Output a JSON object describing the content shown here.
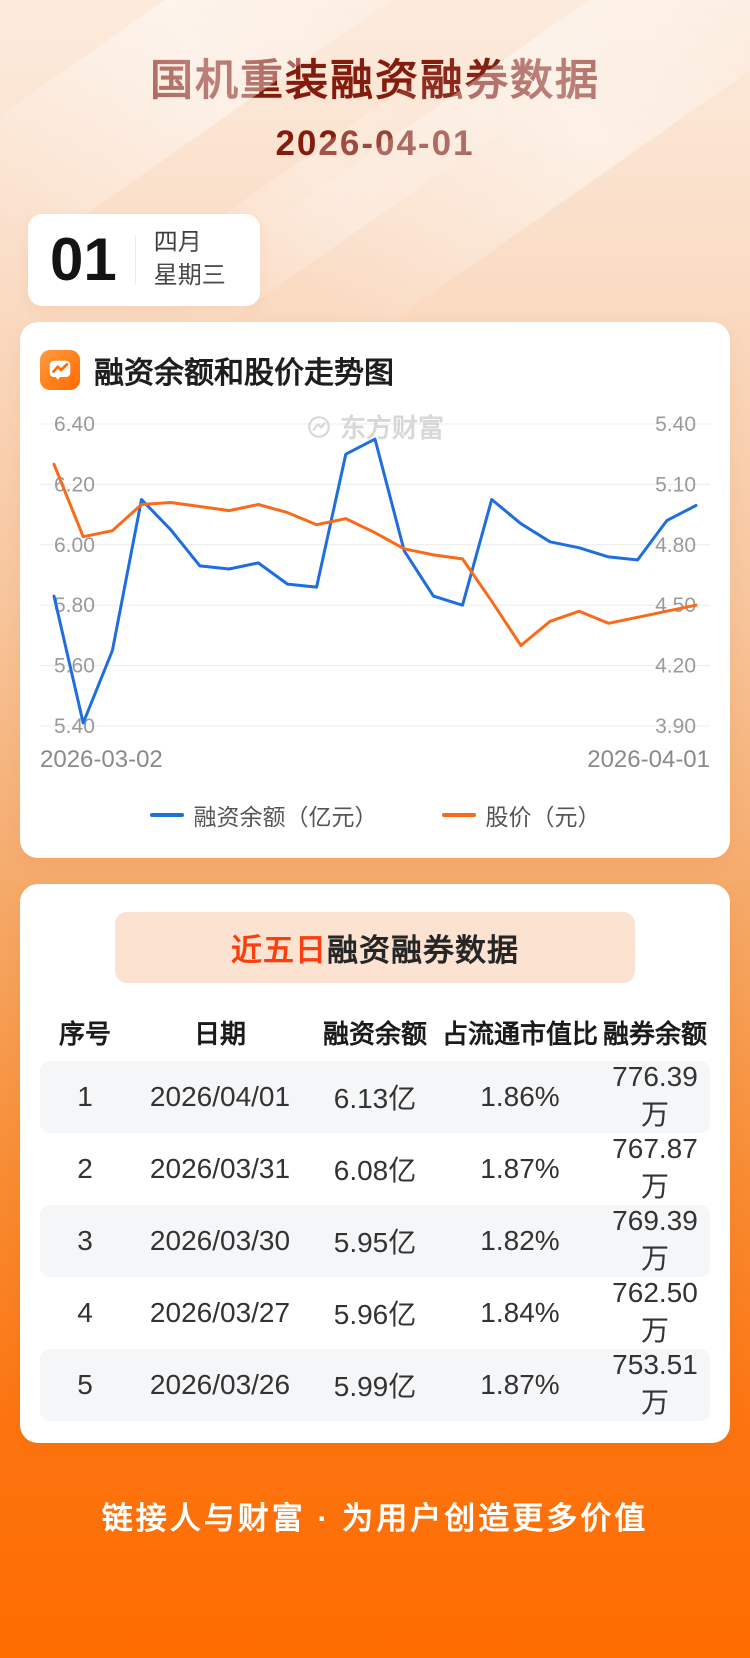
{
  "page": {
    "title": "国机重装融资融券数据",
    "date": "2026-04-01",
    "day_number": "01",
    "month_label": "四月",
    "weekday_label": "星期三",
    "watermark": "东方财富",
    "footer": "链接人与财富 · 为用户创造更多价值"
  },
  "colors": {
    "accent_orange": "#FF6C00",
    "title_red": "#841B0D",
    "line_blue": "#1E6EE0",
    "line_orange": "#F96A1B",
    "highlight_red": "#FA3E0E",
    "grid_gray": "#ECECEC",
    "row_alt": "#F5F6F8"
  },
  "chart_section": {
    "title": "融资余额和股价走势图",
    "x_start_label": "2026-03-02",
    "x_end_label": "2026-04-01",
    "legend": [
      {
        "label": "融资余额（亿元）",
        "color": "#1E6EE0"
      },
      {
        "label": "股价（元）",
        "color": "#F96A1B"
      }
    ]
  },
  "chart_data": {
    "type": "line",
    "title": "融资余额和股价走势图",
    "grid": true,
    "legend_position": "bottom",
    "x": [
      "03/02",
      "03/03",
      "03/04",
      "03/05",
      "03/06",
      "03/09",
      "03/10",
      "03/11",
      "03/12",
      "03/13",
      "03/16",
      "03/17",
      "03/18",
      "03/19",
      "03/20",
      "03/23",
      "03/24",
      "03/25",
      "03/26",
      "03/27",
      "03/30",
      "03/31",
      "04/01"
    ],
    "series": [
      {
        "name": "融资余额（亿元）",
        "axis": "left",
        "color": "#1E6EE0",
        "values": [
          5.83,
          5.41,
          5.65,
          6.15,
          6.05,
          5.93,
          5.92,
          5.94,
          5.87,
          5.86,
          6.3,
          6.35,
          5.98,
          5.83,
          5.8,
          6.15,
          6.07,
          6.01,
          5.99,
          5.96,
          5.95,
          6.08,
          6.13
        ]
      },
      {
        "name": "股价（元）",
        "axis": "right",
        "color": "#F96A1B",
        "values": [
          5.2,
          4.84,
          4.87,
          5.0,
          5.01,
          4.99,
          4.97,
          5.0,
          4.96,
          4.9,
          4.93,
          4.86,
          4.78,
          4.75,
          4.73,
          4.52,
          4.3,
          4.42,
          4.47,
          4.41,
          4.44,
          4.47,
          4.5
        ]
      }
    ],
    "left_axis": {
      "label": "融资余额（亿元）",
      "min": 5.4,
      "max": 6.4,
      "ticks": [
        "6.40",
        "6.20",
        "6.00",
        "5.80",
        "5.60",
        "5.40"
      ]
    },
    "right_axis": {
      "label": "股价（元）",
      "min": 3.9,
      "max": 5.4,
      "ticks": [
        "5.40",
        "5.10",
        "4.80",
        "4.50",
        "4.20",
        "3.90"
      ]
    },
    "xlabel": "",
    "ylabel": ""
  },
  "table_section": {
    "title_highlight": "近五日",
    "title_rest": "融资融券数据",
    "columns": [
      "序号",
      "日期",
      "融资余额",
      "占流通市值比",
      "融券余额"
    ],
    "rows": [
      [
        "1",
        "2026/04/01",
        "6.13亿",
        "1.86%",
        "776.39万"
      ],
      [
        "2",
        "2026/03/31",
        "6.08亿",
        "1.87%",
        "767.87万"
      ],
      [
        "3",
        "2026/03/30",
        "5.95亿",
        "1.82%",
        "769.39万"
      ],
      [
        "4",
        "2026/03/27",
        "5.96亿",
        "1.84%",
        "762.50万"
      ],
      [
        "5",
        "2026/03/26",
        "5.99亿",
        "1.87%",
        "753.51万"
      ]
    ]
  }
}
